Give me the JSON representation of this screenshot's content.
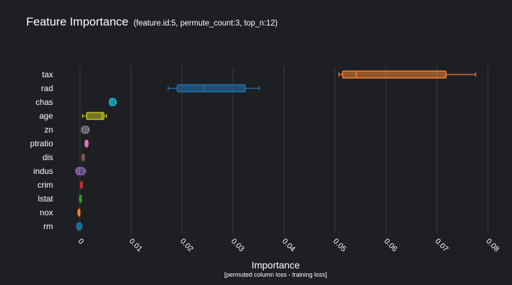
{
  "title": {
    "main": "Feature Importance",
    "subtitle": "(feature.id:5, permute_count:3, top_n:12)"
  },
  "chart_data": {
    "type": "boxplot",
    "orientation": "horizontal",
    "xlabel": "Importance",
    "xlabel_sub": "[permuted column loss - training loss]",
    "xlim": [
      -0.005,
      0.08
    ],
    "xticks": [
      0,
      0.01,
      0.02,
      0.03,
      0.04,
      0.05,
      0.06,
      0.07,
      0.08
    ],
    "xtick_labels": [
      "0",
      "0.01",
      "0.02",
      "0.03",
      "0.04",
      "0.05",
      "0.06",
      "0.07",
      "0.08"
    ],
    "grid": true,
    "features": [
      {
        "name": "tax",
        "color": "#f58231",
        "min": 0.0508,
        "q1": 0.0515,
        "median": 0.0542,
        "q3": 0.0718,
        "max": 0.0776
      },
      {
        "name": "rad",
        "color": "#1f77b4",
        "min": 0.0173,
        "q1": 0.0191,
        "median": 0.0243,
        "q3": 0.0324,
        "max": 0.0352
      },
      {
        "name": "chas",
        "color": "#17becf",
        "min": 0.0058,
        "q1": 0.0059,
        "median": 0.0063,
        "q3": 0.0069,
        "max": 0.0071
      },
      {
        "name": "age",
        "color": "#bcbd22",
        "min": 0.0005,
        "q1": 0.0013,
        "median": 0.0043,
        "q3": 0.0047,
        "max": 0.0052
      },
      {
        "name": "zn",
        "color": "#7f7f7f",
        "min": 0.0003,
        "q1": 0.0005,
        "median": 0.0011,
        "q3": 0.0016,
        "max": 0.0018
      },
      {
        "name": "ptratio",
        "color": "#e377c2",
        "min": 0.001,
        "q1": 0.0011,
        "median": 0.0013,
        "q3": 0.0015,
        "max": 0.0016
      },
      {
        "name": "dis",
        "color": "#8c564b",
        "min": 0.0004,
        "q1": 0.0005,
        "median": 0.0006,
        "q3": 0.0008,
        "max": 0.0009
      },
      {
        "name": "indus",
        "color": "#9467bd",
        "min": -0.0008,
        "q1": -0.0006,
        "median": -0.0001,
        "q3": 0.0008,
        "max": 0.0011
      },
      {
        "name": "crim",
        "color": "#d62728",
        "min": 0.0001,
        "q1": 0.0002,
        "median": 0.0003,
        "q3": 0.0004,
        "max": 0.0004
      },
      {
        "name": "lstat",
        "color": "#2ca02c",
        "min": -0.0001,
        "q1": 0.0,
        "median": 0.0001,
        "q3": 0.0002,
        "max": 0.0002
      },
      {
        "name": "nox",
        "color": "#f58231",
        "min": -0.0004,
        "q1": -0.0003,
        "median": -0.0002,
        "q3": -0.0001,
        "max": 0.0
      },
      {
        "name": "rm",
        "color": "#1f77b4",
        "min": -0.0006,
        "q1": -0.0005,
        "median": -0.0002,
        "q3": 0.0002,
        "max": 0.0004
      }
    ]
  }
}
